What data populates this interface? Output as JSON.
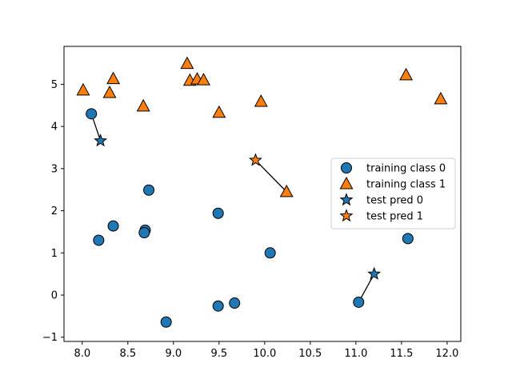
{
  "chart_data": {
    "type": "scatter",
    "title": "",
    "xlabel": "",
    "ylabel": "",
    "xlim": [
      7.8,
      12.15
    ],
    "ylim": [
      -1.1,
      5.9
    ],
    "xticks": [
      8.0,
      8.5,
      9.0,
      9.5,
      10.0,
      10.5,
      11.0,
      11.5,
      12.0
    ],
    "xtick_labels": [
      "8.0",
      "8.5",
      "9.0",
      "9.5",
      "10.0",
      "10.5",
      "11.0",
      "11.5",
      "12.0"
    ],
    "yticks": [
      -1,
      0,
      1,
      2,
      3,
      4,
      5
    ],
    "ytick_labels": [
      "−1",
      "0",
      "1",
      "2",
      "3",
      "4",
      "5"
    ],
    "grid": false,
    "legend_position": "center-right",
    "colors": {
      "class0": "#1f77b4",
      "class1": "#ff7f0e",
      "edge": "#000000"
    },
    "series": [
      {
        "name": "training class 0",
        "marker": "circle",
        "color": "#1f77b4",
        "points": [
          [
            8.1,
            4.3
          ],
          [
            8.73,
            2.49
          ],
          [
            8.34,
            1.64
          ],
          [
            8.18,
            1.3
          ],
          [
            8.69,
            1.54
          ],
          [
            8.68,
            1.48
          ],
          [
            9.49,
            1.94
          ],
          [
            10.06,
            1.0
          ],
          [
            11.57,
            1.34
          ],
          [
            11.03,
            -0.17
          ],
          [
            9.67,
            -0.19
          ],
          [
            9.49,
            -0.26
          ],
          [
            8.92,
            -0.64
          ]
        ]
      },
      {
        "name": "training class 1",
        "marker": "triangle",
        "color": "#ff7f0e",
        "points": [
          [
            8.01,
            4.86
          ],
          [
            8.3,
            4.8
          ],
          [
            8.34,
            5.13
          ],
          [
            8.67,
            4.48
          ],
          [
            9.18,
            5.09
          ],
          [
            9.15,
            5.49
          ],
          [
            9.26,
            5.12
          ],
          [
            9.33,
            5.1
          ],
          [
            9.5,
            4.33
          ],
          [
            9.96,
            4.59
          ],
          [
            10.24,
            2.45
          ],
          [
            11.55,
            5.22
          ],
          [
            11.93,
            4.65
          ]
        ]
      },
      {
        "name": "test pred 0",
        "marker": "star",
        "color": "#1f77b4",
        "points": [
          [
            8.2,
            3.66
          ],
          [
            11.2,
            0.5
          ]
        ]
      },
      {
        "name": "test pred 1",
        "marker": "star",
        "color": "#ff7f0e",
        "points": [
          [
            9.9,
            3.2
          ]
        ]
      }
    ],
    "neighbor_lines": [
      {
        "from": [
          8.2,
          3.66
        ],
        "to": [
          8.1,
          4.3
        ]
      },
      {
        "from": [
          9.9,
          3.2
        ],
        "to": [
          10.24,
          2.45
        ]
      },
      {
        "from": [
          11.2,
          0.5
        ],
        "to": [
          11.03,
          -0.17
        ]
      }
    ]
  }
}
